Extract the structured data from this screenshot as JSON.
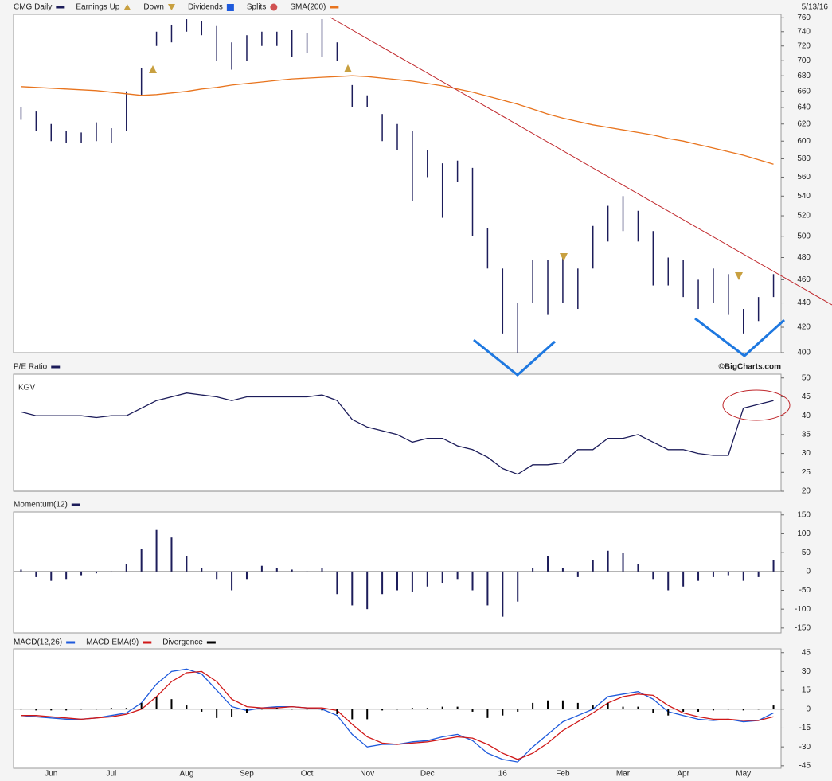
{
  "chart_data": [
    {
      "type": "ohlc",
      "log_scale": true,
      "date": "5/13/16",
      "event_legend": [
        "Earnings Up",
        "Down",
        "Dividends",
        "Splits"
      ],
      "series": [
        {
          "name": "CMG Daily",
          "color": "#1c1c5a",
          "high": [
            640,
            635,
            620,
            612,
            610,
            622,
            615,
            660,
            690,
            740,
            750,
            758,
            755,
            748,
            725,
            735,
            740,
            740,
            742,
            738,
            758,
            725,
            668,
            655,
            632,
            620,
            612,
            590,
            575,
            578,
            570,
            508,
            470,
            440,
            478,
            478,
            480,
            470,
            510,
            530,
            540,
            525,
            505,
            480,
            478,
            460,
            470,
            465,
            435,
            445,
            465
          ],
          "low": [
            625,
            612,
            600,
            598,
            598,
            600,
            598,
            612,
            655,
            720,
            725,
            740,
            735,
            700,
            688,
            700,
            720,
            720,
            705,
            710,
            705,
            700,
            640,
            640,
            600,
            590,
            535,
            560,
            518,
            555,
            500,
            470,
            415,
            400,
            440,
            430,
            440,
            435,
            470,
            495,
            505,
            495,
            455,
            455,
            445,
            435,
            440,
            430,
            415,
            425,
            445
          ]
        },
        {
          "name": "SMA(200)",
          "color": "#e8741e",
          "values": [
            666,
            665,
            664,
            663,
            662,
            661,
            659,
            657,
            655,
            656,
            658,
            660,
            663,
            665,
            668,
            670,
            672,
            674,
            676,
            677,
            678,
            679,
            680,
            679,
            677,
            675,
            673,
            670,
            667,
            663,
            659,
            654,
            649,
            644,
            638,
            632,
            627,
            623,
            619,
            616,
            613,
            610,
            607,
            603,
            600,
            596,
            592,
            588,
            584,
            579,
            574
          ]
        }
      ],
      "ylim": [
        400,
        765
      ],
      "yticks": [
        400,
        420,
        440,
        460,
        480,
        500,
        520,
        540,
        560,
        580,
        600,
        620,
        640,
        660,
        680,
        700,
        720,
        740,
        760
      ]
    },
    {
      "type": "line",
      "source": "©BigCharts.com",
      "annotation": "KGV",
      "series": [
        {
          "name": "P/E Ratio",
          "color": "#1c1c5a",
          "values": [
            41,
            40,
            40,
            40,
            40,
            39.5,
            40,
            40,
            42,
            44,
            45,
            46,
            45.5,
            45,
            44,
            45,
            45,
            45,
            45,
            45,
            45.5,
            44,
            39,
            37,
            36,
            35,
            33,
            34,
            34,
            32,
            31,
            29,
            26,
            24.5,
            27,
            27,
            27.5,
            31,
            31,
            34,
            34,
            35,
            33,
            31,
            31,
            30,
            29.5,
            29.5,
            42,
            43,
            44
          ]
        }
      ],
      "ylim": [
        20,
        51
      ],
      "yticks": [
        20,
        25,
        30,
        35,
        40,
        45,
        50
      ]
    },
    {
      "type": "bar",
      "series": [
        {
          "name": "Momentum(12)",
          "color": "#1c1c5a",
          "values": [
            5,
            -15,
            -25,
            -20,
            -10,
            -5,
            0,
            20,
            60,
            110,
            90,
            40,
            10,
            -20,
            -50,
            -20,
            15,
            10,
            5,
            0,
            10,
            -60,
            -90,
            -100,
            -60,
            -50,
            -55,
            -40,
            -30,
            -20,
            -50,
            -90,
            -120,
            -80,
            10,
            40,
            10,
            -15,
            30,
            55,
            50,
            20,
            -20,
            -50,
            -40,
            -25,
            -15,
            -10,
            -25,
            -15,
            30
          ]
        }
      ],
      "ylim": [
        -163,
        158
      ],
      "yticks": [
        -150,
        -100,
        -50,
        0,
        50,
        100,
        150
      ]
    },
    {
      "type": "line",
      "categories": [
        null,
        null,
        "Jun",
        null,
        null,
        null,
        "Jul",
        null,
        null,
        null,
        null,
        "Aug",
        null,
        null,
        null,
        "Sep",
        null,
        null,
        null,
        "Oct",
        null,
        null,
        null,
        "Nov",
        null,
        null,
        null,
        "Dec",
        null,
        null,
        null,
        null,
        "16",
        null,
        null,
        null,
        "Feb",
        null,
        null,
        null,
        "Mar",
        null,
        null,
        null,
        "Apr",
        null,
        null,
        null,
        "May",
        null,
        null
      ],
      "series": [
        {
          "name": "MACD(12,26)",
          "color": "#1e5adc",
          "values": [
            -5,
            -6,
            -7,
            -8,
            -8,
            -7,
            -5,
            -3,
            5,
            20,
            30,
            32,
            28,
            15,
            2,
            -1,
            1,
            2,
            2,
            1,
            0,
            -5,
            -20,
            -30,
            -28,
            -28,
            -26,
            -25,
            -22,
            -20,
            -25,
            -35,
            -40,
            -42,
            -30,
            -20,
            -10,
            -5,
            0,
            10,
            12,
            14,
            8,
            -2,
            -5,
            -8,
            -9,
            -8,
            -10,
            -9,
            -3
          ]
        },
        {
          "name": "MACD EMA(9)",
          "color": "#d01818",
          "values": [
            -5,
            -5,
            -6,
            -7,
            -8,
            -7,
            -6,
            -4,
            0,
            10,
            22,
            29,
            30,
            22,
            8,
            2,
            1,
            1,
            2,
            1,
            1,
            -1,
            -12,
            -22,
            -27,
            -28,
            -27,
            -26,
            -24,
            -22,
            -23,
            -28,
            -35,
            -40,
            -35,
            -27,
            -17,
            -10,
            -3,
            5,
            10,
            12,
            11,
            3,
            -3,
            -6,
            -8,
            -8,
            -9,
            -9,
            -6
          ]
        },
        {
          "name": "Divergence",
          "color": "#000000",
          "type": "bar",
          "values": [
            0,
            -1,
            -1,
            -1,
            0,
            0,
            1,
            1,
            5,
            10,
            8,
            3,
            -2,
            -7,
            -6,
            -3,
            0,
            1,
            0,
            0,
            -1,
            -4,
            -8,
            -8,
            -1,
            0,
            1,
            1,
            2,
            2,
            -2,
            -7,
            -5,
            -2,
            5,
            7,
            7,
            5,
            3,
            5,
            2,
            2,
            -3,
            -5,
            -2,
            -2,
            -1,
            0,
            -1,
            0,
            3
          ]
        }
      ],
      "ylim": [
        -47,
        48
      ],
      "yticks": [
        -45,
        -30,
        -15,
        0,
        15,
        30,
        45
      ]
    }
  ]
}
